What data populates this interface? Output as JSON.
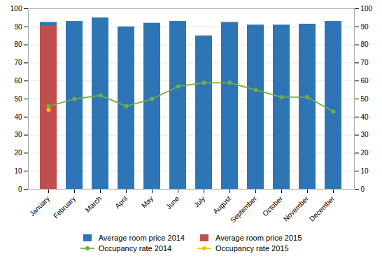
{
  "chart_data": {
    "type": "bar",
    "categories": [
      "January",
      "February",
      "March",
      "April",
      "May",
      "June",
      "July",
      "August",
      "September",
      "October",
      "November",
      "December"
    ],
    "series": [
      {
        "name": "Average room price 2014",
        "type": "bar",
        "color": "#2E75B6",
        "values": [
          92.5,
          93,
          95,
          90,
          92,
          93,
          85,
          92.5,
          91,
          91,
          91.5,
          93
        ]
      },
      {
        "name": "Average room price 2015",
        "type": "bar",
        "color": "#C0504D",
        "values": [
          90.5,
          null,
          null,
          null,
          null,
          null,
          null,
          null,
          null,
          null,
          null,
          null
        ]
      },
      {
        "name": "Occupancy rate 2014",
        "type": "line",
        "marker": "circle",
        "axis": "y2",
        "color": "#70AD47",
        "values": [
          46,
          50,
          52,
          46,
          50,
          57,
          59,
          59,
          55,
          51,
          51,
          43
        ]
      },
      {
        "name": "Occupancy rate 2015",
        "type": "line",
        "marker": "circle",
        "axis": "y2",
        "color": "#FFC000",
        "values": [
          44,
          null,
          null,
          null,
          null,
          null,
          null,
          null,
          null,
          null,
          null,
          null
        ]
      }
    ],
    "ylim": [
      0,
      100
    ],
    "yticks": [
      0,
      10,
      20,
      30,
      40,
      50,
      60,
      70,
      80,
      90,
      100
    ],
    "y2lim": [
      0,
      100
    ],
    "y2ticks": [
      0,
      10,
      20,
      30,
      40,
      50,
      60,
      70,
      80,
      90,
      100
    ],
    "grid": true,
    "legend": "bottom"
  }
}
